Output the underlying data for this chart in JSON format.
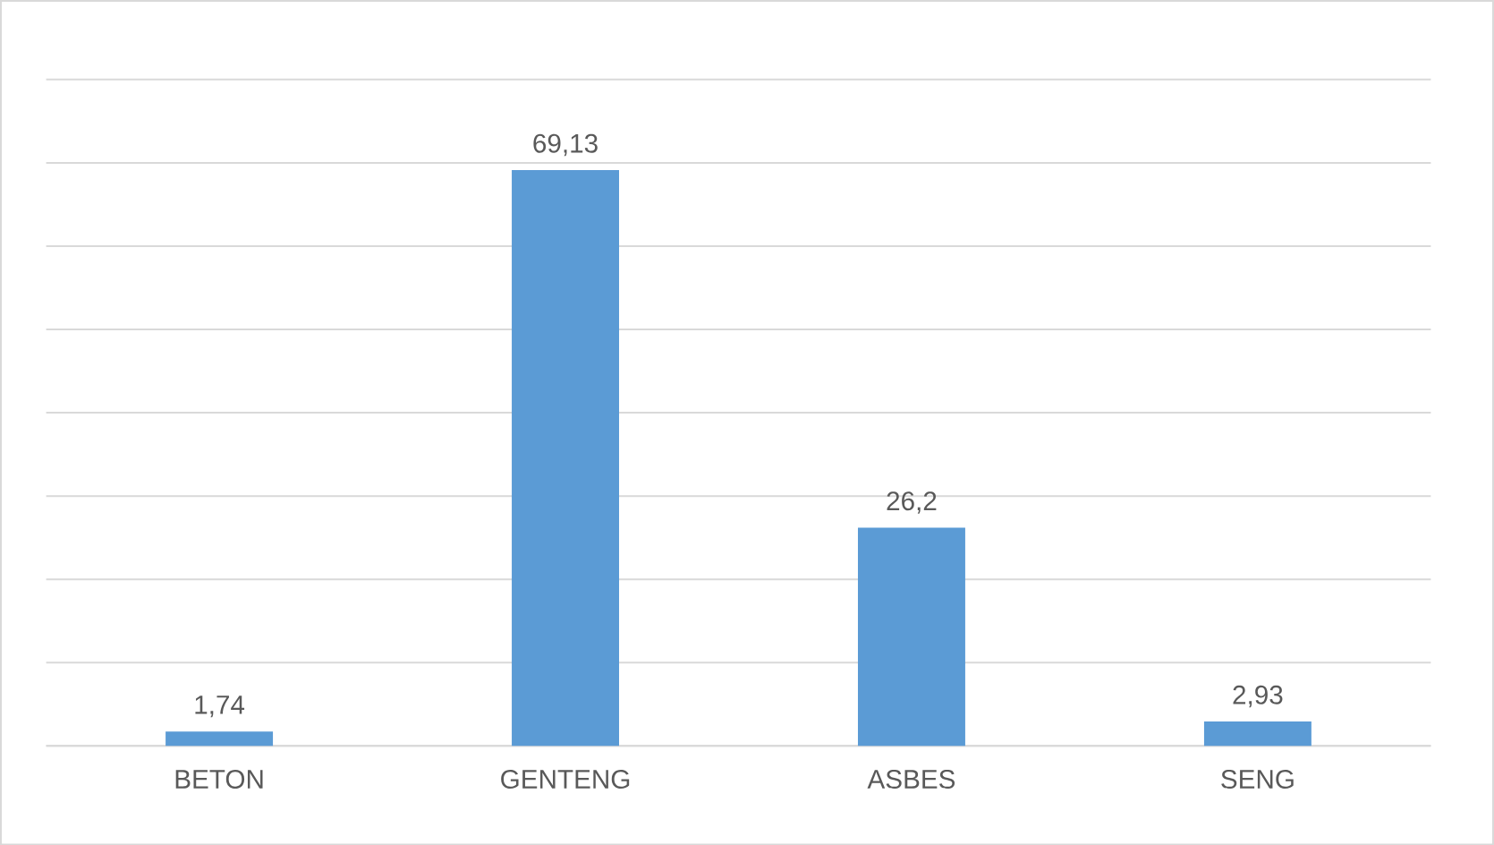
{
  "chart_data": {
    "type": "bar",
    "categories": [
      "BETON",
      "GENTENG",
      "ASBES",
      "SENG"
    ],
    "values": [
      1.74,
      69.13,
      26.2,
      2.93
    ],
    "value_labels": [
      "1,74",
      "69,13",
      "26,2",
      "2,93"
    ],
    "color": "#5b9bd5",
    "ylim": [
      0,
      80
    ],
    "yticks": [
      {
        "value": 0,
        "label": null
      },
      {
        "value": 10,
        "label": null
      },
      {
        "value": 20,
        "label": null
      },
      {
        "value": 30,
        "label": null
      },
      {
        "value": 40,
        "label": null
      },
      {
        "value": 50,
        "label": null
      },
      {
        "value": 60,
        "label": null
      },
      {
        "value": 70,
        "label": null
      },
      {
        "value": 80,
        "label": null
      }
    ],
    "grid": "y",
    "tick_labels": "x"
  }
}
